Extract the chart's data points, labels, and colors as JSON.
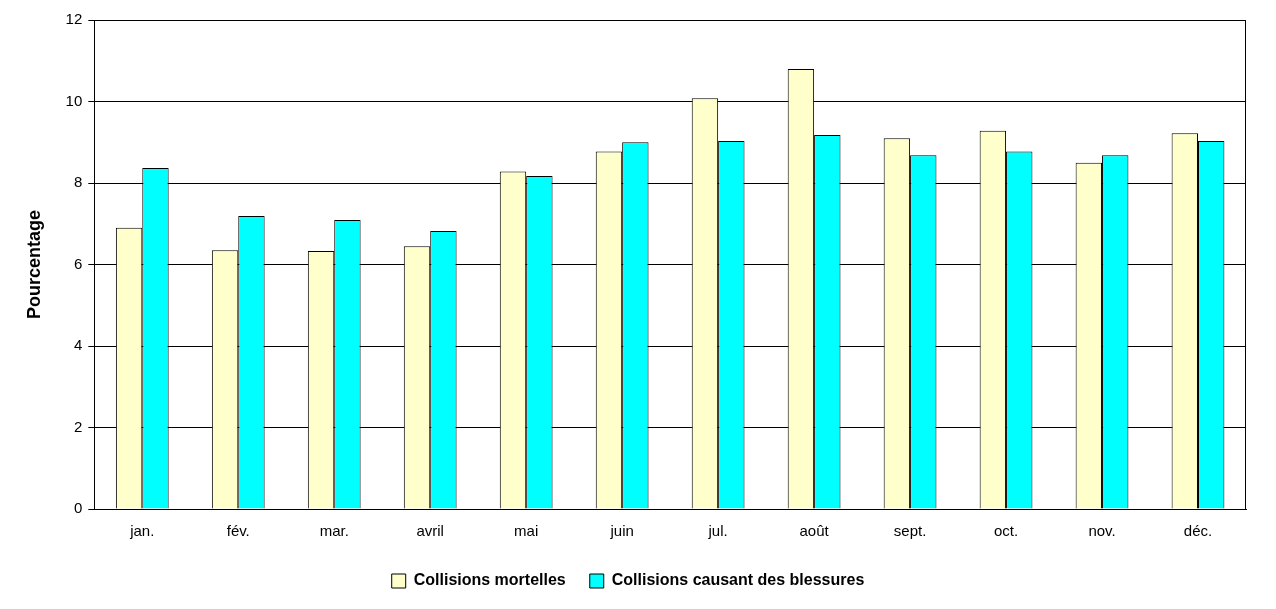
{
  "chart_data": {
    "type": "bar",
    "ylabel": "Pourcentage",
    "categories": [
      "jan.",
      "fév.",
      "mar.",
      "avril",
      "mai",
      "juin",
      "jul.",
      "août",
      "sept.",
      "oct.",
      "nov.",
      "déc."
    ],
    "series": [
      {
        "name": "Collisions mortelles",
        "color": "#ffffcc",
        "values": [
          6.9,
          6.35,
          6.33,
          6.45,
          8.28,
          8.77,
          10.08,
          10.8,
          9.1,
          9.28,
          8.5,
          9.22
        ]
      },
      {
        "name": "Collisions causant des blessures",
        "color": "#00ffff",
        "values": [
          8.37,
          7.19,
          7.09,
          6.82,
          8.17,
          9.0,
          9.03,
          9.18,
          8.68,
          8.77,
          8.68,
          9.03
        ]
      }
    ],
    "ylim": [
      0,
      12
    ],
    "yticks": [
      0,
      2,
      4,
      6,
      8,
      10,
      12
    ],
    "grid": "y",
    "legend": "bottom"
  }
}
